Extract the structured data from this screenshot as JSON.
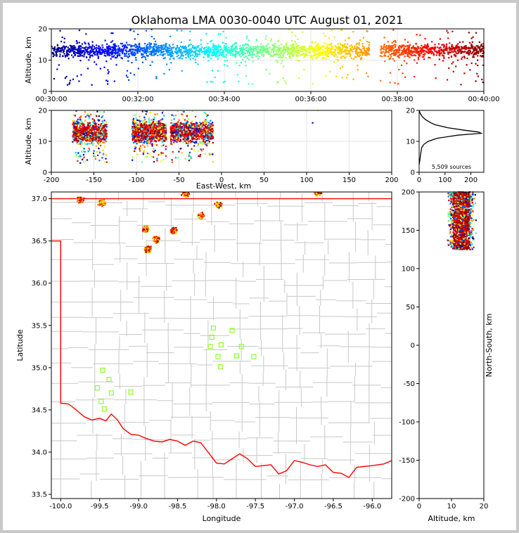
{
  "title": "Oklahoma LMA 0030-0040 UTC August 01, 2021",
  "colors": {
    "background": "#ffffff",
    "border": "#c8c8c8",
    "state_line": "#ff0000",
    "county_line": "#c8c8c8",
    "station": "#7cfc00",
    "histogram": "#000000",
    "grid": "#e6e6e6"
  },
  "colormap": "jet (blue = early, dark red = late)",
  "chart_data": [
    {
      "type": "scatter",
      "name": "altitude-time",
      "xlabel": "",
      "ylabel": "Altitude, km",
      "xlim": [
        "00:30:00",
        "00:40:00"
      ],
      "ylim": [
        0,
        20
      ],
      "xticks": [
        "00:30:00",
        "00:32:00",
        "00:34:00",
        "00:36:00",
        "00:38:00",
        "00:40:00"
      ],
      "yticks": [
        0,
        10,
        20
      ],
      "grid": true,
      "data_gap_minutes": [
        37.35,
        37.6
      ],
      "typical_altitude_km": 13
    },
    {
      "type": "scatter",
      "name": "east-west-altitude",
      "xlabel": "East-West, km",
      "ylabel": "Altitude, km",
      "xlim": [
        -200,
        200
      ],
      "ylim": [
        0,
        20
      ],
      "xticks": [
        -200,
        -150,
        -100,
        -50,
        0,
        50,
        100,
        150,
        200
      ],
      "yticks": [
        0,
        10,
        20
      ],
      "grid": true,
      "clusters_km": [
        [
          -175,
          -135
        ],
        [
          -105,
          -65
        ],
        [
          -60,
          -10
        ]
      ]
    },
    {
      "type": "line",
      "name": "altitude-histogram",
      "xlabel": "",
      "ylabel": "",
      "xlim": [
        0,
        250
      ],
      "ylim": [
        0,
        20
      ],
      "xticks": [
        0,
        100,
        200
      ],
      "yticks": [
        0,
        10,
        20
      ],
      "annotation": "5,509 sources",
      "profile": [
        [
          0,
          2.5
        ],
        [
          3,
          4
        ],
        [
          6,
          6
        ],
        [
          10,
          8
        ],
        [
          18,
          9
        ],
        [
          35,
          10
        ],
        [
          70,
          11
        ],
        [
          150,
          12
        ],
        [
          240,
          12.6
        ],
        [
          230,
          13
        ],
        [
          175,
          13.6
        ],
        [
          110,
          14.4
        ],
        [
          60,
          15.4
        ],
        [
          45,
          16
        ],
        [
          25,
          17
        ],
        [
          12,
          18
        ],
        [
          4,
          19
        ],
        [
          0,
          20
        ]
      ]
    },
    {
      "type": "scatter",
      "name": "plan-view",
      "xlabel": "Longitude",
      "ylabel": "Latitude",
      "xlim": [
        -100.12,
        -95.75
      ],
      "ylim": [
        33.45,
        37.08
      ],
      "xticks": [
        -100.0,
        -99.5,
        -99.0,
        -98.5,
        -98.0,
        -97.5,
        -97.0,
        -96.5,
        -96.0
      ],
      "yticks": [
        33.5,
        34.0,
        34.5,
        35.0,
        35.5,
        36.0,
        36.5,
        37.0
      ],
      "grid": false,
      "stations": [
        [
          -98.04,
          35.47
        ],
        [
          -97.8,
          35.44
        ],
        [
          -98.06,
          35.36
        ],
        [
          -97.94,
          35.27
        ],
        [
          -98.08,
          35.25
        ],
        [
          -97.68,
          35.25
        ],
        [
          -97.74,
          35.14
        ],
        [
          -97.98,
          35.13
        ],
        [
          -97.52,
          35.13
        ],
        [
          -97.95,
          35.01
        ],
        [
          -99.46,
          34.97
        ],
        [
          -99.38,
          34.86
        ],
        [
          -99.53,
          34.76
        ],
        [
          -99.35,
          34.7
        ],
        [
          -99.1,
          34.71
        ],
        [
          -99.48,
          34.6
        ],
        [
          -99.44,
          34.51
        ]
      ],
      "storm_cells": [
        [
          -99.75,
          36.99
        ],
        [
          -99.47,
          36.95
        ],
        [
          -98.91,
          36.64
        ],
        [
          -98.77,
          36.52
        ],
        [
          -98.55,
          36.62
        ],
        [
          -98.88,
          36.4
        ],
        [
          -98.2,
          36.8
        ],
        [
          -98.4,
          37.06
        ],
        [
          -97.97,
          36.93
        ],
        [
          -96.7,
          37.07
        ]
      ]
    },
    {
      "type": "scatter",
      "name": "north-south-altitude",
      "xlabel": "Altitude, km",
      "ylabel": "North-South, km",
      "xlim": [
        0,
        20
      ],
      "ylim": [
        -200,
        200
      ],
      "xticks": [
        0,
        10,
        20
      ],
      "yticks": [
        -200,
        -150,
        -100,
        -50,
        0,
        50,
        100,
        150,
        200
      ],
      "grid": false,
      "bands_km": [
        [
          125,
          160
        ],
        [
          160,
          178
        ],
        [
          180,
          200
        ]
      ]
    }
  ]
}
